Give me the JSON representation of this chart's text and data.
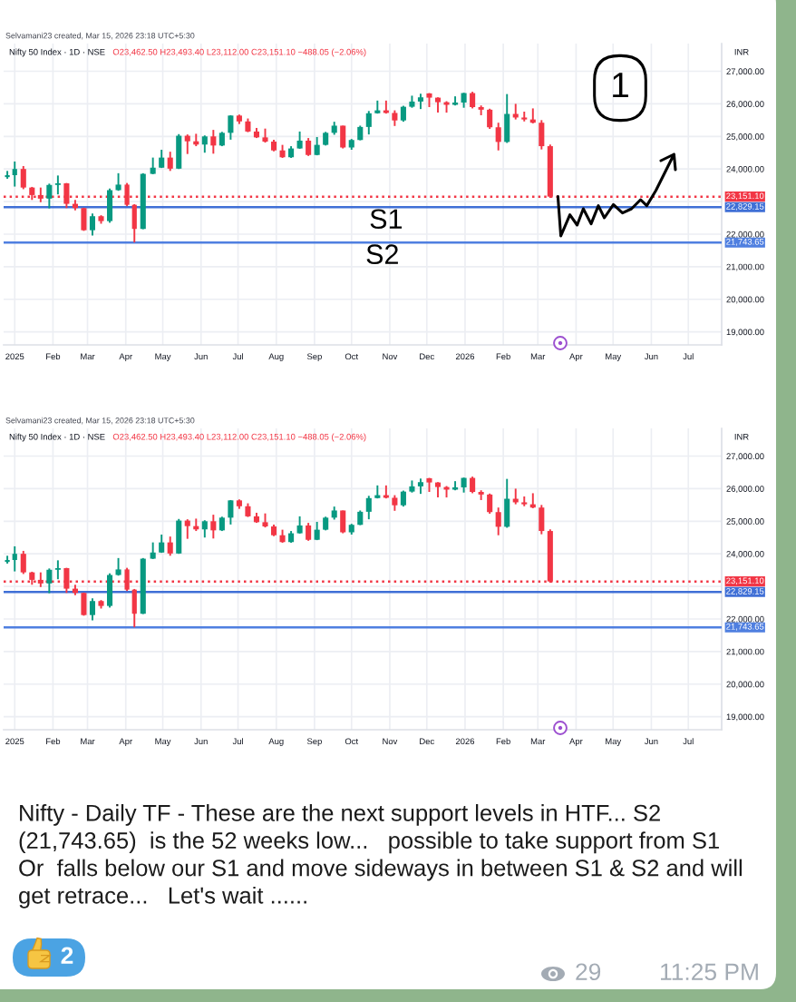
{
  "chart_data": [
    {
      "type": "candlestick",
      "subtitle": "Selvamani23 created, Mar 15, 2026 23:18 UTC+5:30",
      "title": "Nifty 50 Index · 1D · NSE",
      "ylabel": "INR",
      "x": [
        "2024-12-26",
        "2025-01-01",
        "2025-01-08",
        "2025-01-15",
        "2025-01-22",
        "2025-01-29",
        "2025-02-05",
        "2025-02-12",
        "2025-02-19",
        "2025-02-26",
        "2025-03-05",
        "2025-03-12",
        "2025-03-19",
        "2025-03-26",
        "2025-04-02",
        "2025-04-08",
        "2025-04-15",
        "2025-04-23",
        "2025-04-30",
        "2025-05-07",
        "2025-05-14",
        "2025-05-21",
        "2025-05-28",
        "2025-06-04",
        "2025-06-11",
        "2025-06-18",
        "2025-06-25",
        "2025-07-02",
        "2025-07-09",
        "2025-07-16",
        "2025-07-23",
        "2025-07-30",
        "2025-08-06",
        "2025-08-13",
        "2025-08-20",
        "2025-08-27",
        "2025-09-03",
        "2025-09-10",
        "2025-09-17",
        "2025-09-24",
        "2025-10-01",
        "2025-10-08",
        "2025-10-15",
        "2025-10-22",
        "2025-10-29",
        "2025-11-05",
        "2025-11-12",
        "2025-11-19",
        "2025-11-26",
        "2025-12-03",
        "2025-12-10",
        "2025-12-17",
        "2025-12-24",
        "2025-12-31",
        "2026-01-07",
        "2026-01-14",
        "2026-01-21",
        "2026-01-28",
        "2026-02-04",
        "2026-02-11",
        "2026-02-18",
        "2026-02-25",
        "2026-03-04",
        "2026-03-11"
      ],
      "ohlc": [
        [
          23750,
          23940,
          23700,
          23810
        ],
        [
          23810,
          24230,
          23460,
          24000
        ],
        [
          24000,
          24090,
          23380,
          23430
        ],
        [
          23430,
          23450,
          23050,
          23200
        ],
        [
          23200,
          23430,
          22980,
          23090
        ],
        [
          23090,
          23550,
          22790,
          23510
        ],
        [
          23510,
          23800,
          23220,
          23560
        ],
        [
          23560,
          23570,
          22800,
          22930
        ],
        [
          22930,
          23050,
          22730,
          22800
        ],
        [
          22800,
          22810,
          22100,
          22120
        ],
        [
          22120,
          22630,
          21960,
          22550
        ],
        [
          22550,
          22580,
          22320,
          22400
        ],
        [
          22400,
          23400,
          22350,
          23350
        ],
        [
          23350,
          23870,
          23330,
          23520
        ],
        [
          23520,
          23570,
          22860,
          22900
        ],
        [
          22900,
          22920,
          21743.65,
          22160
        ],
        [
          22160,
          23870,
          22150,
          23850
        ],
        [
          23850,
          24350,
          23840,
          24040
        ],
        [
          24040,
          24590,
          24030,
          24350
        ],
        [
          24350,
          24530,
          23940,
          24010
        ],
        [
          24010,
          25070,
          24000,
          25020
        ],
        [
          25020,
          25060,
          24460,
          24850
        ],
        [
          24850,
          25080,
          24700,
          24750
        ],
        [
          24750,
          25030,
          24500,
          25000
        ],
        [
          25000,
          25200,
          24470,
          24720
        ],
        [
          24720,
          25140,
          24700,
          25110
        ],
        [
          25110,
          25650,
          24900,
          25640
        ],
        [
          25640,
          25670,
          25380,
          25460
        ],
        [
          25460,
          25550,
          25130,
          25150
        ],
        [
          25150,
          25260,
          24950,
          24970
        ],
        [
          24970,
          25240,
          24810,
          24840
        ],
        [
          24840,
          24900,
          24540,
          24570
        ],
        [
          24570,
          24740,
          24340,
          24360
        ],
        [
          24360,
          24700,
          24340,
          24630
        ],
        [
          24630,
          25150,
          24620,
          24870
        ],
        [
          24870,
          24950,
          24400,
          24430
        ],
        [
          24430,
          24980,
          24420,
          24740
        ],
        [
          24740,
          25140,
          24720,
          25110
        ],
        [
          25110,
          25450,
          25050,
          25330
        ],
        [
          25330,
          25330,
          24630,
          24660
        ],
        [
          24660,
          24920,
          24590,
          24890
        ],
        [
          24890,
          25330,
          24880,
          25290
        ],
        [
          25290,
          25780,
          25060,
          25710
        ],
        [
          25710,
          26100,
          25700,
          25800
        ],
        [
          25800,
          26100,
          25700,
          25720
        ],
        [
          25720,
          25800,
          25320,
          25490
        ],
        [
          25490,
          25940,
          25450,
          25910
        ],
        [
          25910,
          26250,
          25880,
          26070
        ],
        [
          26070,
          26310,
          25840,
          26200
        ],
        [
          26320,
          26330,
          25900,
          26190
        ],
        [
          26190,
          26200,
          25730,
          26050
        ],
        [
          26050,
          26080,
          25730,
          25970
        ],
        [
          25970,
          26230,
          25950,
          26040
        ],
        [
          26040,
          26340,
          25880,
          26330
        ],
        [
          26330,
          26370,
          25860,
          25900
        ],
        [
          25900,
          25950,
          25650,
          25820
        ],
        [
          25820,
          25850,
          25230,
          25280
        ],
        [
          25280,
          25420,
          24570,
          24830
        ],
        [
          24830,
          26300,
          24800,
          25690
        ],
        [
          25690,
          26000,
          25520,
          25580
        ],
        [
          25580,
          25760,
          25460,
          25520
        ],
        [
          25520,
          25860,
          25400,
          25420
        ],
        [
          25420,
          25500,
          24600,
          24700
        ],
        [
          24700,
          24750,
          23112,
          23151.1
        ]
      ],
      "colors": [
        "#089981",
        "#089981",
        "#f23645",
        "#f23645",
        "#f23645",
        "#089981",
        "#089981",
        "#f23645",
        "#f23645",
        "#f23645",
        "#089981",
        "#f23645",
        "#089981",
        "#089981",
        "#f23645",
        "#f23645",
        "#089981",
        "#089981",
        "#089981",
        "#f23645",
        "#089981",
        "#f23645",
        "#f23645",
        "#089981",
        "#f23645",
        "#089981",
        "#089981",
        "#f23645",
        "#f23645",
        "#f23645",
        "#f23645",
        "#f23645",
        "#f23645",
        "#089981",
        "#089981",
        "#f23645",
        "#089981",
        "#089981",
        "#089981",
        "#f23645",
        "#089981",
        "#089981",
        "#089981",
        "#089981",
        "#f23645",
        "#f23645",
        "#089981",
        "#089981",
        "#089981",
        "#f23645",
        "#f23645",
        "#f23645",
        "#089981",
        "#089981",
        "#f23645",
        "#f23645",
        "#f23645",
        "#f23645",
        "#089981",
        "#f23645",
        "#f23645",
        "#f23645",
        "#f23645",
        "#f23645"
      ],
      "xlim": [
        "2024-12-23",
        "2026-07-28"
      ],
      "xticks": [
        {
          "value": "2025-01-01",
          "label": "2025"
        },
        {
          "value": "2025-02-01",
          "label": "Feb"
        },
        {
          "value": "2025-03-01",
          "label": "Mar"
        },
        {
          "value": "2025-04-01",
          "label": "Apr"
        },
        {
          "value": "2025-05-01",
          "label": "May"
        },
        {
          "value": "2025-06-01",
          "label": "Jun"
        },
        {
          "value": "2025-07-01",
          "label": "Jul"
        },
        {
          "value": "2025-08-01",
          "label": "Aug"
        },
        {
          "value": "2025-09-01",
          "label": "Sep"
        },
        {
          "value": "2025-10-01",
          "label": "Oct"
        },
        {
          "value": "2025-11-01",
          "label": "Nov"
        },
        {
          "value": "2025-12-01",
          "label": "Dec"
        },
        {
          "value": "2026-01-01",
          "label": "2026"
        },
        {
          "value": "2026-02-01",
          "label": "Feb"
        },
        {
          "value": "2026-03-01",
          "label": "Mar"
        },
        {
          "value": "2026-04-01",
          "label": "Apr"
        },
        {
          "value": "2026-05-01",
          "label": "May"
        },
        {
          "value": "2026-06-01",
          "label": "Jun"
        },
        {
          "value": "2026-07-01",
          "label": "Jul"
        }
      ],
      "ylim": [
        18600,
        27850
      ],
      "yticks": [
        {
          "value": 19000,
          "label": "19,000.00"
        },
        {
          "value": 20000,
          "label": "20,000.00"
        },
        {
          "value": 21000,
          "label": "21,000.00"
        },
        {
          "value": 22000,
          "label": "22,000.00"
        },
        {
          "value": 23000,
          "label": null
        },
        {
          "value": 24000,
          "label": "24,000.00"
        },
        {
          "value": 25000,
          "label": "25,000.00"
        },
        {
          "value": 26000,
          "label": "26,000.00"
        },
        {
          "value": 27000,
          "label": "27,000.00"
        }
      ],
      "grid": true,
      "ref_lines": [
        {
          "axis": "y",
          "value": 23151.1,
          "label": "23,151.10",
          "color": "#f23645",
          "line_style": "dotted"
        },
        {
          "axis": "y",
          "value": 22829.15,
          "label": "22,829.15",
          "color": "#3f6fd6",
          "line_style": "solid"
        },
        {
          "axis": "y",
          "value": 21743.65,
          "label": "21,743.65",
          "color": "#4f7fe0",
          "line_style": "solid"
        }
      ],
      "annotations": [
        "O23,462.50 H23,493.40 L23,112.00 C23,151.10 −488.05 (−2.06%)",
        "1",
        {
          "text": "S1",
          "x": "2025-10-29",
          "y": 22829.15
        },
        {
          "text": "S2",
          "x": "2025-10-26",
          "y": 21743.65
        }
      ]
    },
    {
      "type": "candlestick",
      "subtitle": "Selvamani23 created, Mar 15, 2026 23:18 UTC+5:30",
      "title": "Nifty 50 Index · 1D · NSE",
      "ylabel": "INR",
      "x": [
        "2024-12-26",
        "2025-01-01",
        "2025-01-08",
        "2025-01-15",
        "2025-01-22",
        "2025-01-29",
        "2025-02-05",
        "2025-02-12",
        "2025-02-19",
        "2025-02-26",
        "2025-03-05",
        "2025-03-12",
        "2025-03-19",
        "2025-03-26",
        "2025-04-02",
        "2025-04-08",
        "2025-04-15",
        "2025-04-23",
        "2025-04-30",
        "2025-05-07",
        "2025-05-14",
        "2025-05-21",
        "2025-05-28",
        "2025-06-04",
        "2025-06-11",
        "2025-06-18",
        "2025-06-25",
        "2025-07-02",
        "2025-07-09",
        "2025-07-16",
        "2025-07-23",
        "2025-07-30",
        "2025-08-06",
        "2025-08-13",
        "2025-08-20",
        "2025-08-27",
        "2025-09-03",
        "2025-09-10",
        "2025-09-17",
        "2025-09-24",
        "2025-10-01",
        "2025-10-08",
        "2025-10-15",
        "2025-10-22",
        "2025-10-29",
        "2025-11-05",
        "2025-11-12",
        "2025-11-19",
        "2025-11-26",
        "2025-12-03",
        "2025-12-10",
        "2025-12-17",
        "2025-12-24",
        "2025-12-31",
        "2026-01-07",
        "2026-01-14",
        "2026-01-21",
        "2026-01-28",
        "2026-02-04",
        "2026-02-11",
        "2026-02-18",
        "2026-02-25",
        "2026-03-04",
        "2026-03-11"
      ],
      "ohlc": [
        [
          23750,
          23940,
          23700,
          23810
        ],
        [
          23810,
          24230,
          23460,
          24000
        ],
        [
          24000,
          24090,
          23380,
          23430
        ],
        [
          23430,
          23450,
          23050,
          23200
        ],
        [
          23200,
          23430,
          22980,
          23090
        ],
        [
          23090,
          23550,
          22790,
          23510
        ],
        [
          23510,
          23800,
          23220,
          23560
        ],
        [
          23560,
          23570,
          22800,
          22930
        ],
        [
          22930,
          23050,
          22730,
          22800
        ],
        [
          22800,
          22810,
          22100,
          22120
        ],
        [
          22120,
          22630,
          21960,
          22550
        ],
        [
          22550,
          22580,
          22320,
          22400
        ],
        [
          22400,
          23400,
          22350,
          23350
        ],
        [
          23350,
          23870,
          23330,
          23520
        ],
        [
          23520,
          23570,
          22860,
          22900
        ],
        [
          22900,
          22920,
          21743.65,
          22160
        ],
        [
          22160,
          23870,
          22150,
          23850
        ],
        [
          23850,
          24350,
          23840,
          24040
        ],
        [
          24040,
          24590,
          24030,
          24350
        ],
        [
          24350,
          24530,
          23940,
          24010
        ],
        [
          24010,
          25070,
          24000,
          25020
        ],
        [
          25020,
          25060,
          24460,
          24850
        ],
        [
          24850,
          25080,
          24700,
          24750
        ],
        [
          24750,
          25030,
          24500,
          25000
        ],
        [
          25000,
          25200,
          24470,
          24720
        ],
        [
          24720,
          25140,
          24700,
          25110
        ],
        [
          25110,
          25650,
          24900,
          25640
        ],
        [
          25640,
          25670,
          25380,
          25460
        ],
        [
          25460,
          25550,
          25130,
          25150
        ],
        [
          25150,
          25260,
          24950,
          24970
        ],
        [
          24970,
          25240,
          24810,
          24840
        ],
        [
          24840,
          24900,
          24540,
          24570
        ],
        [
          24570,
          24740,
          24340,
          24360
        ],
        [
          24360,
          24700,
          24340,
          24630
        ],
        [
          24630,
          25150,
          24620,
          24870
        ],
        [
          24870,
          24950,
          24400,
          24430
        ],
        [
          24430,
          24980,
          24420,
          24740
        ],
        [
          24740,
          25140,
          24720,
          25110
        ],
        [
          25110,
          25450,
          25050,
          25330
        ],
        [
          25330,
          25330,
          24630,
          24660
        ],
        [
          24660,
          24920,
          24590,
          24890
        ],
        [
          24890,
          25330,
          24880,
          25290
        ],
        [
          25290,
          25780,
          25060,
          25710
        ],
        [
          25710,
          26100,
          25700,
          25800
        ],
        [
          25800,
          26100,
          25700,
          25720
        ],
        [
          25720,
          25800,
          25320,
          25490
        ],
        [
          25490,
          25940,
          25450,
          25910
        ],
        [
          25910,
          26250,
          25880,
          26070
        ],
        [
          26070,
          26310,
          25840,
          26200
        ],
        [
          26320,
          26330,
          25900,
          26190
        ],
        [
          26190,
          26200,
          25730,
          26050
        ],
        [
          26050,
          26080,
          25730,
          25970
        ],
        [
          25970,
          26230,
          25950,
          26040
        ],
        [
          26040,
          26340,
          25880,
          26330
        ],
        [
          26330,
          26370,
          25860,
          25900
        ],
        [
          25900,
          25950,
          25650,
          25820
        ],
        [
          25820,
          25850,
          25230,
          25280
        ],
        [
          25280,
          25420,
          24570,
          24830
        ],
        [
          24830,
          26300,
          24800,
          25690
        ],
        [
          25690,
          26000,
          25520,
          25580
        ],
        [
          25580,
          25760,
          25460,
          25520
        ],
        [
          25520,
          25860,
          25400,
          25420
        ],
        [
          25420,
          25500,
          24600,
          24700
        ],
        [
          24700,
          24750,
          23112,
          23151.1
        ]
      ],
      "colors": [
        "#089981",
        "#089981",
        "#f23645",
        "#f23645",
        "#f23645",
        "#089981",
        "#089981",
        "#f23645",
        "#f23645",
        "#f23645",
        "#089981",
        "#f23645",
        "#089981",
        "#089981",
        "#f23645",
        "#f23645",
        "#089981",
        "#089981",
        "#089981",
        "#f23645",
        "#089981",
        "#f23645",
        "#f23645",
        "#089981",
        "#f23645",
        "#089981",
        "#089981",
        "#f23645",
        "#f23645",
        "#f23645",
        "#f23645",
        "#f23645",
        "#f23645",
        "#089981",
        "#089981",
        "#f23645",
        "#089981",
        "#089981",
        "#089981",
        "#f23645",
        "#089981",
        "#089981",
        "#089981",
        "#089981",
        "#f23645",
        "#f23645",
        "#089981",
        "#089981",
        "#089981",
        "#f23645",
        "#f23645",
        "#f23645",
        "#089981",
        "#089981",
        "#f23645",
        "#f23645",
        "#f23645",
        "#f23645",
        "#089981",
        "#f23645",
        "#f23645",
        "#f23645",
        "#f23645",
        "#f23645"
      ],
      "xlim": [
        "2024-12-23",
        "2026-07-28"
      ],
      "xticks": [
        {
          "value": "2025-01-01",
          "label": "2025"
        },
        {
          "value": "2025-02-01",
          "label": "Feb"
        },
        {
          "value": "2025-03-01",
          "label": "Mar"
        },
        {
          "value": "2025-04-01",
          "label": "Apr"
        },
        {
          "value": "2025-05-01",
          "label": "May"
        },
        {
          "value": "2025-06-01",
          "label": "Jun"
        },
        {
          "value": "2025-07-01",
          "label": "Jul"
        },
        {
          "value": "2025-08-01",
          "label": "Aug"
        },
        {
          "value": "2025-09-01",
          "label": "Sep"
        },
        {
          "value": "2025-10-01",
          "label": "Oct"
        },
        {
          "value": "2025-11-01",
          "label": "Nov"
        },
        {
          "value": "2025-12-01",
          "label": "Dec"
        },
        {
          "value": "2026-01-01",
          "label": "2026"
        },
        {
          "value": "2026-02-01",
          "label": "Feb"
        },
        {
          "value": "2026-03-01",
          "label": "Mar"
        },
        {
          "value": "2026-04-01",
          "label": "Apr"
        },
        {
          "value": "2026-05-01",
          "label": "May"
        },
        {
          "value": "2026-06-01",
          "label": "Jun"
        },
        {
          "value": "2026-07-01",
          "label": "Jul"
        }
      ],
      "ylim": [
        18600,
        27850
      ],
      "yticks": [
        {
          "value": 19000,
          "label": "19,000.00"
        },
        {
          "value": 20000,
          "label": "20,000.00"
        },
        {
          "value": 21000,
          "label": "21,000.00"
        },
        {
          "value": 22000,
          "label": "22,000.00"
        },
        {
          "value": 23000,
          "label": null
        },
        {
          "value": 24000,
          "label": "24,000.00"
        },
        {
          "value": 25000,
          "label": "25,000.00"
        },
        {
          "value": 26000,
          "label": "26,000.00"
        },
        {
          "value": 27000,
          "label": "27,000.00"
        }
      ],
      "grid": true,
      "ref_lines": [
        {
          "axis": "y",
          "value": 23151.1,
          "label": "23,151.10",
          "color": "#f23645",
          "line_style": "dotted"
        },
        {
          "axis": "y",
          "value": 22829.15,
          "label": "22,829.15",
          "color": "#3f6fd6",
          "line_style": "solid"
        },
        {
          "axis": "y",
          "value": 21743.65,
          "label": "21,743.65",
          "color": "#4f7fe0",
          "line_style": "solid"
        }
      ],
      "annotations": [
        "O23,462.50 H23,493.40 L23,112.00 C23,151.10 −488.05 (−2.06%)"
      ]
    },
    {
      "type": "other",
      "annotations": [
        "Nifty - Daily TF - These are the next support levels in HTF... S2\n(21,743.65)  is the 52 weeks low...   possible to take support from S1\nOr  falls below our S1 and move sideways in between S1 & S2 and will\nget retrace...   Let's wait ......",
        "2",
        "29",
        "11:25 PM"
      ]
    }
  ]
}
